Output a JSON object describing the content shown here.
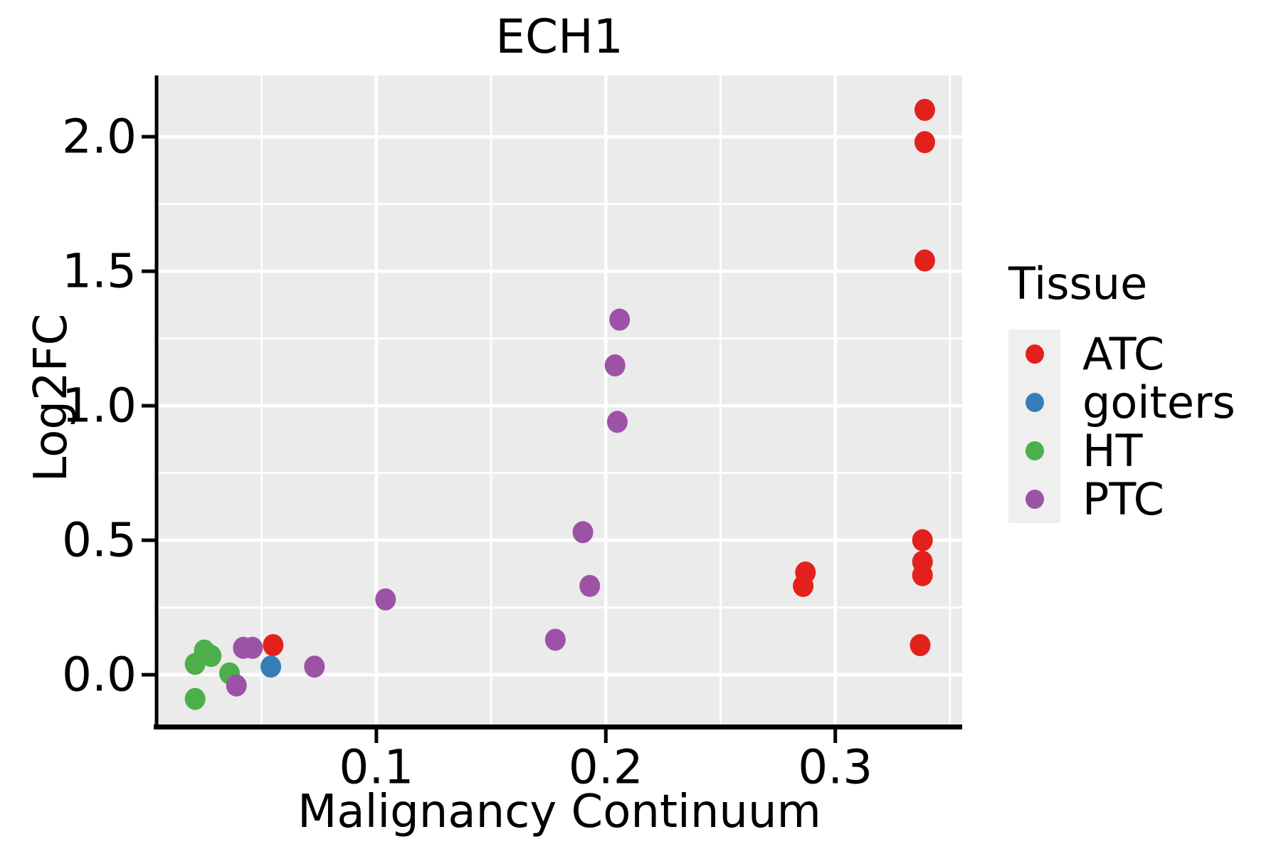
{
  "title": "ECH1",
  "legend": {
    "title": "Tissue",
    "entries": [
      {
        "label": "ATC",
        "color": "#E3211C"
      },
      {
        "label": "goiters",
        "color": "#377EB8"
      },
      {
        "label": "HT",
        "color": "#4DAF4A"
      },
      {
        "label": "PTC",
        "color": "#9C52A5"
      }
    ]
  },
  "chart_data": {
    "type": "scatter",
    "title": "ECH1",
    "xlabel": "Malignancy Continuum",
    "ylabel": "Log2FC",
    "xlim": [
      0.0042,
      0.3553
    ],
    "ylim": [
      -0.185,
      2.228
    ],
    "grid": true,
    "legend_position": "right",
    "panel_background": "#EBEBEB",
    "grid_color": "#FFFFFF",
    "axis_color": "#000000",
    "x_ticks": [
      {
        "value": 0.1,
        "label": "0.1"
      },
      {
        "value": 0.2,
        "label": "0.2"
      },
      {
        "value": 0.3,
        "label": "0.3"
      }
    ],
    "y_ticks": [
      {
        "value": 0.0,
        "label": "0.0"
      },
      {
        "value": 0.5,
        "label": "0.5"
      },
      {
        "value": 1.0,
        "label": "1.0"
      },
      {
        "value": 1.5,
        "label": "1.5"
      },
      {
        "value": 2.0,
        "label": "2.0"
      }
    ],
    "x_minor": [
      0.05,
      0.15,
      0.25,
      0.35
    ],
    "y_minor": [
      0.25,
      0.75,
      1.25,
      1.75
    ],
    "series": [
      {
        "name": "ATC",
        "color": "#E3211C",
        "points": [
          [
            0.055,
            0.11
          ],
          [
            0.286,
            0.33
          ],
          [
            0.287,
            0.38
          ],
          [
            0.337,
            0.11
          ],
          [
            0.338,
            0.37
          ],
          [
            0.338,
            0.42
          ],
          [
            0.338,
            0.5
          ],
          [
            0.339,
            1.54
          ],
          [
            0.339,
            1.98
          ],
          [
            0.339,
            2.1
          ]
        ]
      },
      {
        "name": "goiters",
        "color": "#377EB8",
        "points": [
          [
            0.054,
            0.03
          ]
        ]
      },
      {
        "name": "HT",
        "color": "#4DAF4A",
        "points": [
          [
            0.021,
            -0.09
          ],
          [
            0.021,
            0.04
          ],
          [
            0.025,
            0.09
          ],
          [
            0.028,
            0.07
          ],
          [
            0.036,
            0.005
          ]
        ]
      },
      {
        "name": "PTC",
        "color": "#9C52A5",
        "points": [
          [
            0.039,
            -0.04
          ],
          [
            0.042,
            0.1
          ],
          [
            0.046,
            0.1
          ],
          [
            0.073,
            0.03
          ],
          [
            0.104,
            0.28
          ],
          [
            0.178,
            0.13
          ],
          [
            0.19,
            0.53
          ],
          [
            0.193,
            0.33
          ],
          [
            0.204,
            1.15
          ],
          [
            0.205,
            0.94
          ],
          [
            0.206,
            1.32
          ]
        ]
      }
    ]
  }
}
